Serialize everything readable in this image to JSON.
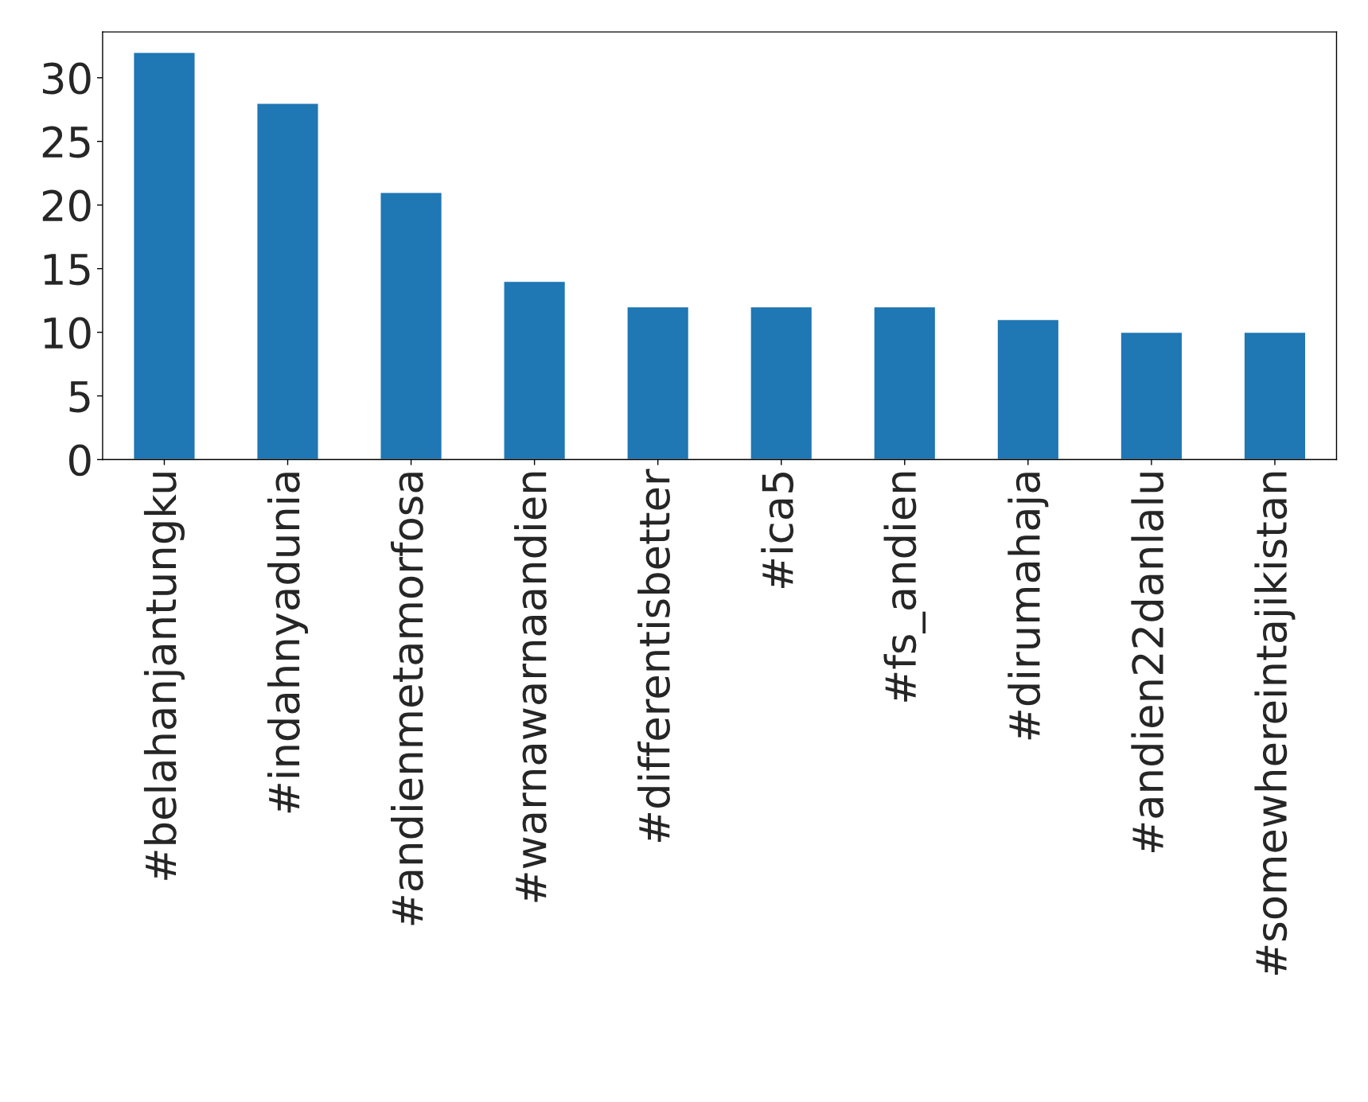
{
  "chart_data": {
    "type": "bar",
    "categories": [
      "#belahanjantungku",
      "#indahnyadunia",
      "#andienmetamorfosa",
      "#warnawarnaandien",
      "#differentisbetter",
      "#ica5",
      "#fs_andien",
      "#dirumahaja",
      "#andien22danlalu",
      "#somewhereintajikistan"
    ],
    "values": [
      32,
      28,
      21,
      14,
      12,
      12,
      12,
      11,
      10,
      10
    ],
    "color": "#1f77b4",
    "ylim": [
      0,
      33.6
    ],
    "yticks": [
      0,
      5,
      10,
      15,
      20,
      25,
      30
    ],
    "grid": false,
    "legend": false
  }
}
